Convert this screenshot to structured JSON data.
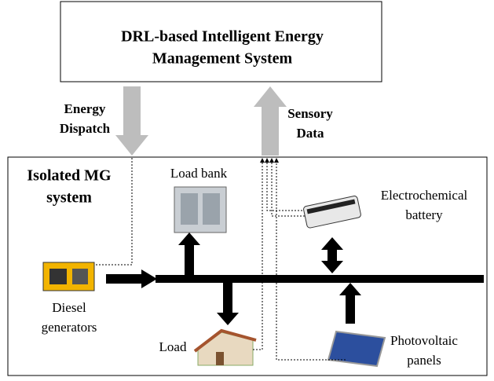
{
  "header": {
    "title": [
      "DRL-based Intelligent Energy",
      "Management System"
    ]
  },
  "arrows": {
    "dispatch": [
      "Energy",
      "Dispatch"
    ],
    "sensory": [
      "Sensory",
      "Data"
    ]
  },
  "system": {
    "label": [
      "Isolated MG",
      "system"
    ]
  },
  "nodes": [
    {
      "label": [
        "Load bank"
      ]
    },
    {
      "label": [
        "Electrochemical",
        "battery"
      ]
    },
    {
      "label": [
        "Diesel",
        "generators"
      ]
    },
    {
      "label": [
        "Load"
      ]
    },
    {
      "label": [
        "Photovoltaic",
        "panels"
      ]
    }
  ]
}
